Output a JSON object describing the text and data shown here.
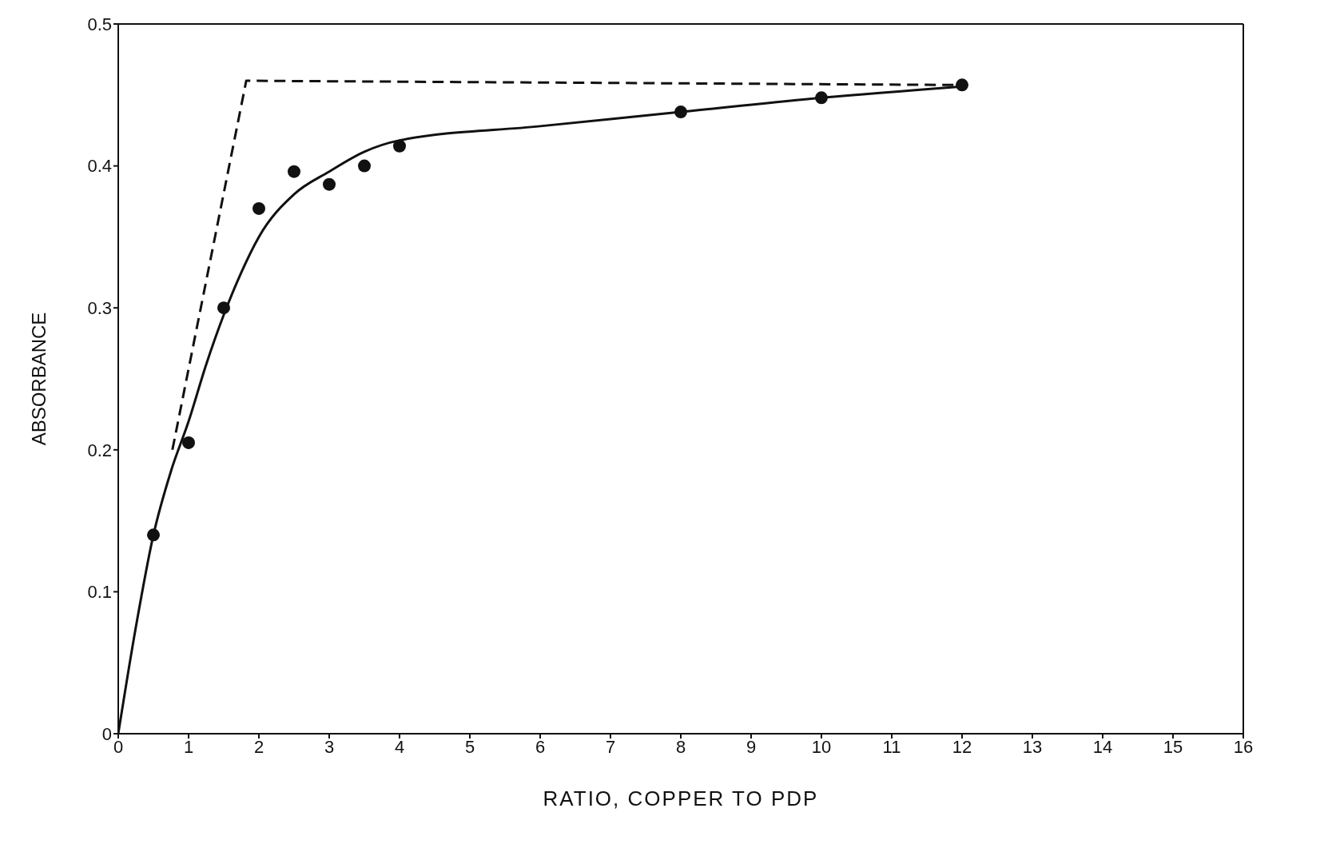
{
  "chart_data": {
    "type": "scatter",
    "xlabel": "RATIO, COPPER TO PDP",
    "ylabel": "ABSORBANCE",
    "xlim": [
      0,
      16
    ],
    "xticks": [
      0,
      1,
      2,
      3,
      4,
      5,
      6,
      7,
      8,
      9,
      10,
      11,
      12,
      13,
      14,
      15,
      16
    ],
    "ylim": [
      0,
      0.5
    ],
    "yticks": [
      0,
      0.1,
      0.2,
      0.3,
      0.4,
      0.5
    ],
    "grid": false,
    "series": [
      {
        "color": "#111111",
        "marker": "circle",
        "x": [
          0.5,
          1,
          1.5,
          2,
          2.5,
          3,
          3.5,
          4,
          8,
          10,
          12
        ],
        "values": [
          0.14,
          0.205,
          0.3,
          0.37,
          0.396,
          0.387,
          0.4,
          0.414,
          0.438,
          0.448,
          0.457
        ]
      },
      {
        "type": "line",
        "color": "#111111",
        "marker": "none",
        "line_style": "solid",
        "x": [
          0,
          0.25,
          0.5,
          0.75,
          1,
          1.25,
          1.5,
          1.75,
          2,
          2.5,
          3,
          3.5,
          4,
          6,
          8,
          10,
          12
        ],
        "values": [
          0,
          0.075,
          0.14,
          0.185,
          0.22,
          0.26,
          0.295,
          0.325,
          0.35,
          0.38,
          0.396,
          0.41,
          0.418,
          0.428,
          0.438,
          0.448,
          0.456
        ]
      },
      {
        "type": "line",
        "color": "#111111",
        "marker": "none",
        "line_style": "dashed",
        "x": [
          0.77,
          1.82,
          12
        ],
        "values": [
          0.2,
          0.46,
          0.457
        ]
      }
    ]
  }
}
